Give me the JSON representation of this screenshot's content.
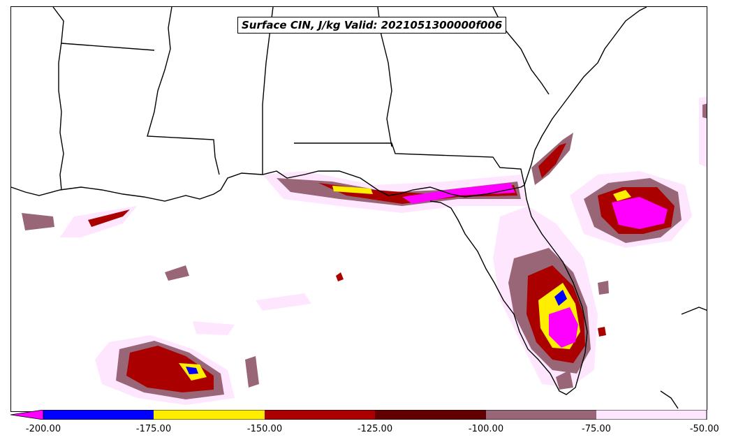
{
  "title": "Surface CIN, J/kg Valid: 2021051300000f006",
  "colorbar": {
    "ticks": [
      "-200.00",
      "-175.00",
      "-150.00",
      "-125.00",
      "-100.00",
      "-75.00",
      "-50.00"
    ],
    "levels": [
      -200,
      -175,
      -150,
      -125,
      -100,
      -75,
      -50
    ],
    "extend": "min",
    "colors": {
      "below_min": "#ff00ff",
      "c1": "#0000ff",
      "c2": "#ffee00",
      "c3": "#aa0000",
      "c4": "#600000",
      "c5": "#996677",
      "c6": "#ffe6ff"
    }
  },
  "map": {
    "region": "Southeast US and Gulf of Mexico",
    "field": "Surface CIN",
    "units": "J/kg"
  }
}
